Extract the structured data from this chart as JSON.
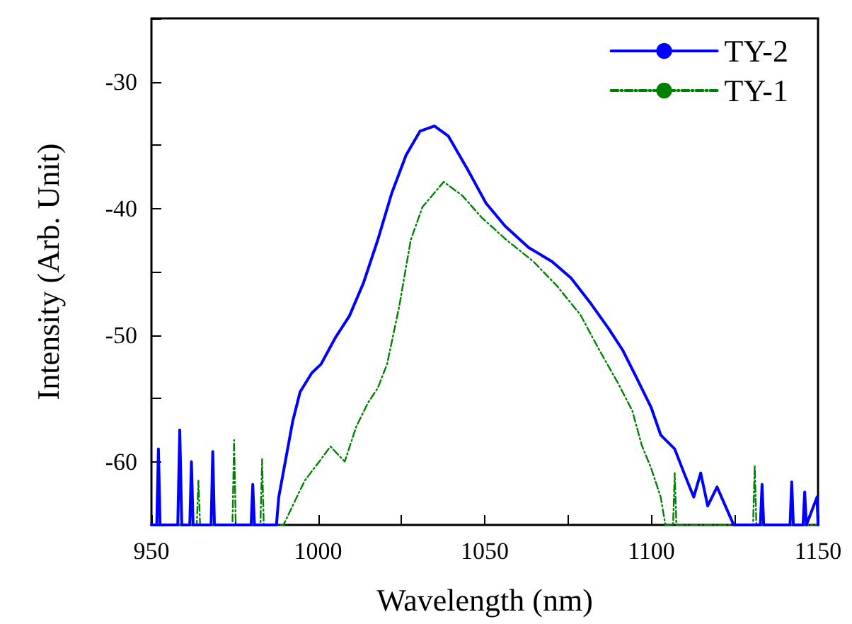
{
  "chart_data": {
    "type": "line",
    "xlabel": "Wavelength (nm)",
    "ylabel": "Intensity (Arb. Unit)",
    "xlim": [
      950,
      1150
    ],
    "ylim": [
      -65,
      -25
    ],
    "xticks": [
      950,
      {
        "value": 975,
        "label": null
      },
      1000,
      {
        "value": 1025,
        "label": null
      },
      1050,
      {
        "value": 1075,
        "label": null
      },
      1100,
      {
        "value": 1125,
        "label": null
      },
      1150
    ],
    "yticks": [
      {
        "value": -65,
        "label": null
      },
      -60,
      {
        "value": -55,
        "label": null
      },
      -50,
      {
        "value": -45,
        "label": null
      },
      -40,
      {
        "value": -35,
        "label": null
      },
      -30,
      {
        "value": -25,
        "label": null
      }
    ],
    "legend": "top right",
    "grid": false,
    "marker": "none",
    "series": [
      {
        "name": "TY-2",
        "color": "#0000ff",
        "line_style": "solid",
        "x": [
          950,
          951.6,
          952.1,
          952.6,
          957.9,
          958.5,
          959.1,
          961.5,
          962,
          962.5,
          967.9,
          968.4,
          968.9,
          979.9,
          980.4,
          980.9,
          987.5,
          988.2,
          992.4,
          994.6,
          998.1,
          1000.9,
          1005.2,
          1009.4,
          1013.6,
          1017.9,
          1022.1,
          1026.4,
          1030.6,
          1034.9,
          1039.1,
          1044.8,
          1050.4,
          1056.1,
          1063.2,
          1070.2,
          1075.9,
          1081.5,
          1087.2,
          1091.4,
          1095.6,
          1099.9,
          1102.8,
          1107,
          1109.8,
          1112.7,
          1114.8,
          1116.9,
          1119.7,
          1124.7,
          1132.7,
          1133.2,
          1133.7,
          1141.6,
          1142.1,
          1142.6,
          1145.5,
          1146,
          1146.5,
          1149.7,
          1150
        ],
        "values": [
          -65,
          -65,
          -59,
          -65,
          -65,
          -57.5,
          -65,
          -65,
          -60,
          -65,
          -65,
          -59.2,
          -65,
          -65,
          -61.8,
          -65,
          -65,
          -62.8,
          -56.8,
          -54.5,
          -53,
          -52.3,
          -50.2,
          -48.5,
          -45.9,
          -42.5,
          -38.8,
          -35.8,
          -33.9,
          -33.5,
          -34.3,
          -36.9,
          -39.6,
          -41.4,
          -43.1,
          -44.2,
          -45.5,
          -47.4,
          -49.5,
          -51.2,
          -53.4,
          -55.7,
          -57.9,
          -59,
          -60.9,
          -62.8,
          -60.9,
          -63.5,
          -62,
          -65,
          -65,
          -61.8,
          -65,
          -65,
          -61.6,
          -65,
          -65,
          -62.4,
          -65,
          -62.8,
          -65
        ]
      },
      {
        "name": "TY-1",
        "color": "#008000",
        "line_style": "dashed",
        "x": [
          950,
          963.6,
          964.1,
          964.6,
          974.3,
          974.8,
          975.3,
          982.7,
          983.2,
          983.7,
          989.6,
          996,
          1000.9,
          1003.7,
          1008,
          1011.5,
          1015.1,
          1017.9,
          1020.7,
          1024.3,
          1027.8,
          1031.3,
          1037.7,
          1043.3,
          1049,
          1056.1,
          1064.6,
          1071.6,
          1078.7,
          1084.4,
          1090,
          1094.3,
          1097.1,
          1099.9,
          1102.8,
          1104.2,
          1106.5,
          1107,
          1107.5,
          1130.5,
          1131,
          1131.5,
          1150
        ],
        "values": [
          -65,
          -65,
          -61.5,
          -65,
          -65,
          -58.3,
          -65,
          -65,
          -59.8,
          -65,
          -65,
          -61.5,
          -59.8,
          -58.8,
          -60,
          -57.2,
          -55.3,
          -54.2,
          -52.3,
          -47.8,
          -42.5,
          -39.9,
          -37.9,
          -39,
          -40.7,
          -42.4,
          -44.2,
          -46.1,
          -48.4,
          -51.2,
          -53.8,
          -56,
          -58.7,
          -60.5,
          -62.8,
          -65,
          -65,
          -60.9,
          -65,
          -65,
          -60.3,
          -65,
          -65
        ]
      }
    ]
  }
}
